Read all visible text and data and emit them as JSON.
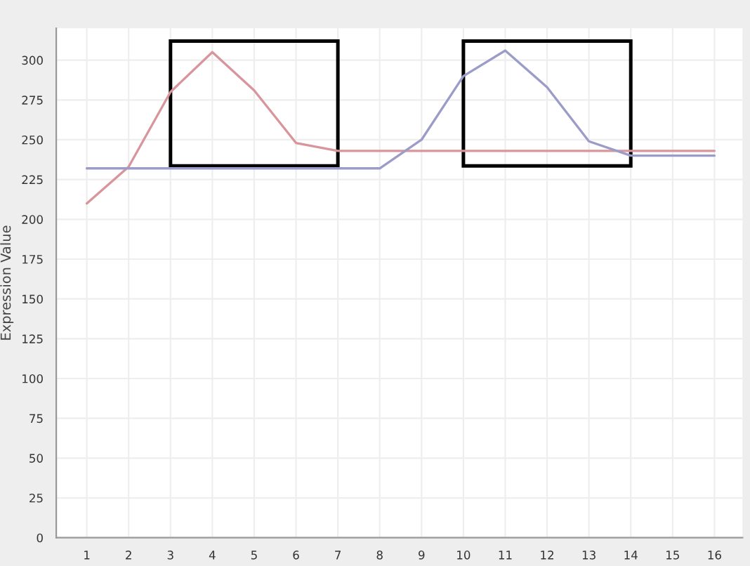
{
  "chart_data": {
    "type": "line",
    "ylabel": "Expression Value",
    "x": [
      1,
      2,
      3,
      4,
      5,
      6,
      7,
      8,
      9,
      10,
      11,
      12,
      13,
      14,
      15,
      16
    ],
    "series": [
      {
        "color": "#d8969c",
        "values": [
          210,
          233,
          280,
          305,
          281,
          248,
          243,
          243,
          243,
          243,
          243,
          243,
          243,
          243,
          243,
          243
        ]
      },
      {
        "color": "#9c9cc8",
        "values": [
          232,
          232,
          232,
          232,
          232,
          232,
          232,
          232,
          250,
          290,
          306,
          283,
          249,
          240,
          240,
          240
        ]
      }
    ],
    "xlim": [
      0.27,
      16.67
    ],
    "ylim": [
      0,
      320
    ],
    "xticks": [
      1,
      2,
      3,
      4,
      5,
      6,
      7,
      8,
      9,
      10,
      11,
      12,
      13,
      14,
      15,
      16
    ],
    "yticks": [
      0,
      25,
      50,
      75,
      100,
      125,
      150,
      175,
      200,
      225,
      250,
      275,
      300
    ],
    "grid": true,
    "legend": false,
    "marker": "none",
    "line_style": "solid"
  }
}
